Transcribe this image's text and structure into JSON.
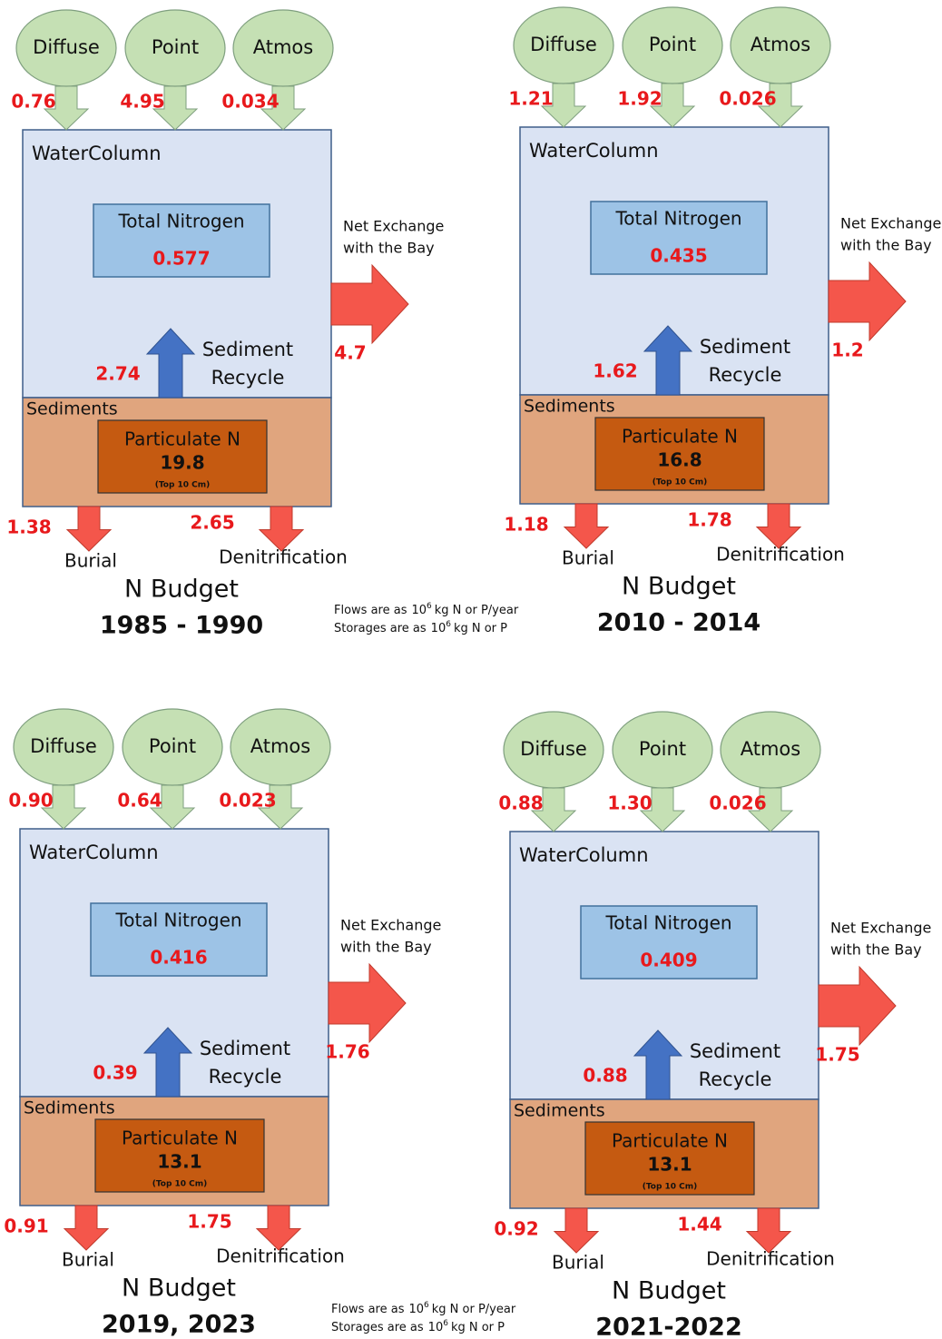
{
  "labels": {
    "diffuse": "Diffuse",
    "point": "Point",
    "atmos": "Atmos",
    "water_column": "WaterColumn",
    "total_nitrogen": "Total Nitrogen",
    "net_exchange": [
      "Net Exchange",
      "with the Bay"
    ],
    "sediment_recycle": [
      "Sediment",
      "Recycle"
    ],
    "sediments": "Sediments",
    "particulate_n": "Particulate N",
    "top_10cm": "(Top 10 Cm)",
    "burial": "Burial",
    "denitrification": "Denitrification",
    "n_budget": "N Budget"
  },
  "notes": {
    "flows": [
      "Flows are as",
      "10",
      "6",
      "kg N or P/year"
    ],
    "storages": [
      "Storages are as",
      "10",
      "6",
      "kg N or P"
    ]
  },
  "panels": [
    {
      "period": "1985 - 1990",
      "diffuse": "0.76",
      "point": "4.95",
      "atmos": "0.034",
      "total_nitrogen": "0.577",
      "net_exchange": "4.7",
      "sediment_recycle": "2.74",
      "particulate_n": "19.8",
      "burial": "1.38",
      "denitrification": "2.65"
    },
    {
      "period": "2010 - 2014",
      "diffuse": "1.21",
      "point": "1.92",
      "atmos": "0.026",
      "total_nitrogen": "0.435",
      "net_exchange": "1.2",
      "sediment_recycle": "1.62",
      "particulate_n": "16.8",
      "burial": "1.18",
      "denitrification": "1.78"
    },
    {
      "period": "2019, 2023",
      "diffuse": "0.90",
      "point": "0.64",
      "atmos": "0.023",
      "total_nitrogen": "0.416",
      "net_exchange": "1.76",
      "sediment_recycle": "0.39",
      "particulate_n": "13.1",
      "burial": "0.91",
      "denitrification": "1.75"
    },
    {
      "period": "2021-2022",
      "diffuse": "0.88",
      "point": "1.30",
      "atmos": "0.026",
      "total_nitrogen": "0.409",
      "net_exchange": "1.75",
      "sediment_recycle": "0.88",
      "particulate_n": "13.1",
      "burial": "0.92",
      "denitrification": "1.44"
    }
  ]
}
